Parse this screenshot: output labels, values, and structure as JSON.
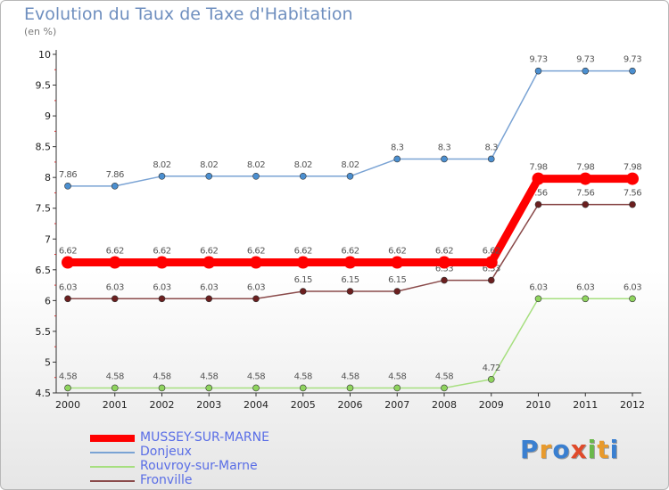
{
  "chart_data": {
    "type": "line",
    "title": "Evolution du Taux de Taxe d'Habitation",
    "subtitle": "(en %)",
    "xlabel": "",
    "ylabel": "",
    "ylim": [
      4.5,
      10
    ],
    "yticks": [
      "4.5",
      "5",
      "5.5",
      "6",
      "6.5",
      "7",
      "7.5",
      "8",
      "8.5",
      "9",
      "9.5",
      "10"
    ],
    "categories": [
      "2000",
      "2001",
      "2002",
      "2003",
      "2004",
      "2005",
      "2006",
      "2007",
      "2008",
      "2009",
      "2010",
      "2011",
      "2012"
    ],
    "grid": false,
    "legend_position": "bottom-left",
    "series": [
      {
        "name": "Donjeux",
        "color": "#7aa3d4",
        "marker": "#4b8fd0",
        "width": 1.5,
        "values": [
          7.86,
          7.86,
          8.02,
          8.02,
          8.02,
          8.02,
          8.02,
          8.3,
          8.3,
          8.3,
          9.73,
          9.73,
          9.73
        ],
        "labels": [
          "7.86",
          "7.86",
          "8.02",
          "8.02",
          "8.02",
          "8.02",
          "8.02",
          "8.3",
          "8.3",
          "8.3",
          "9.73",
          "9.73",
          "9.73"
        ]
      },
      {
        "name": "Fronville",
        "color": "#8a4a4a",
        "marker": "#6b1f1f",
        "width": 1.5,
        "values": [
          6.03,
          6.03,
          6.03,
          6.03,
          6.03,
          6.15,
          6.15,
          6.15,
          6.33,
          6.33,
          7.56,
          7.56,
          7.56
        ],
        "labels": [
          "6.03",
          "6.03",
          "6.03",
          "6.03",
          "6.03",
          "6.15",
          "6.15",
          "6.15",
          "6.33",
          "6.33",
          "7.56",
          "7.56",
          "7.56"
        ]
      },
      {
        "name": "Rouvroy-sur-Marne",
        "color": "#a6df7f",
        "marker": "#8fd45e",
        "width": 1.5,
        "values": [
          4.58,
          4.58,
          4.58,
          4.58,
          4.58,
          4.58,
          4.58,
          4.58,
          4.58,
          4.72,
          6.03,
          6.03,
          6.03
        ],
        "labels": [
          "4.58",
          "4.58",
          "4.58",
          "4.58",
          "4.58",
          "4.58",
          "4.58",
          "4.58",
          "4.58",
          "4.72",
          "6.03",
          "6.03",
          "6.03"
        ]
      },
      {
        "name": "MUSSEY-SUR-MARNE",
        "color": "#ff0000",
        "marker": "#ff0000",
        "width": 9,
        "values": [
          6.62,
          6.62,
          6.62,
          6.62,
          6.62,
          6.62,
          6.62,
          6.62,
          6.62,
          6.62,
          7.98,
          7.98,
          7.98
        ],
        "labels": [
          "6.62",
          "6.62",
          "6.62",
          "6.62",
          "6.62",
          "6.62",
          "6.62",
          "6.62",
          "6.62",
          "6.62",
          "7.98",
          "7.98",
          "7.98"
        ]
      }
    ]
  },
  "legend": [
    {
      "name": "MUSSEY-SUR-MARNE",
      "color": "#ff0000"
    },
    {
      "name": "Donjeux",
      "color": "#7aa3d4"
    },
    {
      "name": "Rouvroy-sur-Marne",
      "color": "#a6df7f"
    },
    {
      "name": "Fronville",
      "color": "#8a4a4a"
    }
  ],
  "logo": {
    "letters": [
      "P",
      "r",
      "o",
      "x",
      "i",
      "t",
      "i"
    ],
    "colors": [
      "#3a7fd0",
      "#e89a2c",
      "#3a7fd0",
      "#e04a2a",
      "#6ab84a",
      "#e89a2c",
      "#3a7fd0"
    ]
  }
}
